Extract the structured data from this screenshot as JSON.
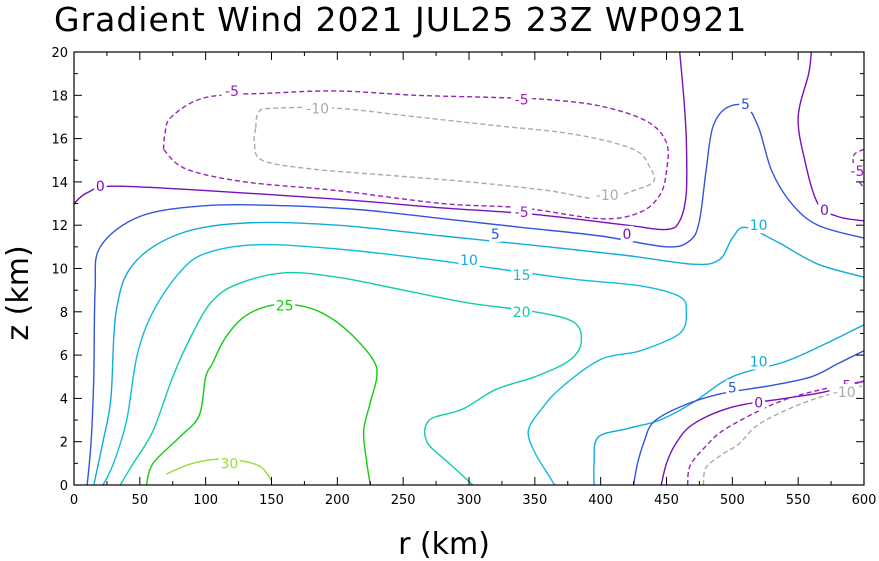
{
  "chart_data": {
    "type": "contour",
    "title": "Gradient Wind 2021 JUL25 23Z   WP0921",
    "xlabel": "r (km)",
    "ylabel": "z (km)",
    "xlim": [
      0,
      600
    ],
    "ylim": [
      0,
      20
    ],
    "xticks": [
      0,
      50,
      100,
      150,
      200,
      250,
      300,
      350,
      400,
      450,
      500,
      550,
      600
    ],
    "yticks": [
      0,
      2,
      4,
      6,
      8,
      10,
      12,
      14,
      16,
      18,
      20
    ],
    "grid": false,
    "contours": [
      {
        "level": 30,
        "color": "#99dd33",
        "dashed": false,
        "lines": [
          [
            [
              70,
              0.5
            ],
            [
              90,
              1.0
            ],
            [
              115,
              1.2
            ],
            [
              140,
              0.9
            ],
            [
              150,
              0.2
            ]
          ]
        ]
      },
      {
        "level": 25,
        "color": "#11cc11",
        "dashed": false,
        "lines": [
          [
            [
              55,
              0
            ],
            [
              60,
              1
            ],
            [
              80,
              2.2
            ],
            [
              95,
              3.2
            ],
            [
              100,
              5.0
            ],
            [
              105,
              5.6
            ],
            [
              115,
              6.8
            ],
            [
              130,
              7.8
            ],
            [
              150,
              8.3
            ],
            [
              170,
              8.3
            ],
            [
              190,
              7.9
            ],
            [
              210,
              7.0
            ],
            [
              227,
              5.8
            ],
            [
              230,
              5.0
            ],
            [
              225,
              3.8
            ],
            [
              220,
              2.5
            ],
            [
              222,
              1.2
            ],
            [
              225,
              0
            ]
          ]
        ]
      },
      {
        "level": 20,
        "color": "#11ccaa",
        "dashed": false,
        "lines": [
          [
            [
              35,
              0
            ],
            [
              45,
              1
            ],
            [
              60,
              2.5
            ],
            [
              75,
              5
            ],
            [
              90,
              7
            ],
            [
              105,
              8.5
            ],
            [
              125,
              9.3
            ],
            [
              160,
              9.8
            ],
            [
              200,
              9.6
            ],
            [
              250,
              9.0
            ],
            [
              300,
              8.4
            ],
            [
              350,
              8.0
            ],
            [
              380,
              7.5
            ],
            [
              385,
              6.5
            ],
            [
              375,
              5.7
            ],
            [
              350,
              5.0
            ],
            [
              320,
              4.4
            ],
            [
              295,
              3.5
            ],
            [
              270,
              3.0
            ],
            [
              268,
              2.0
            ],
            [
              285,
              1.0
            ],
            [
              303,
              0
            ]
          ]
        ]
      },
      {
        "level": 15,
        "color": "#11bbdd",
        "dashed": false,
        "lines": [
          [
            [
              22,
              0
            ],
            [
              30,
              1
            ],
            [
              40,
              3
            ],
            [
              48,
              6
            ],
            [
              60,
              8
            ],
            [
              80,
              9.8
            ],
            [
              100,
              10.7
            ],
            [
              140,
              11.1
            ],
            [
              200,
              10.9
            ],
            [
              260,
              10.5
            ],
            [
              320,
              10.0
            ],
            [
              380,
              9.5
            ],
            [
              430,
              9.2
            ],
            [
              460,
              8.7
            ],
            [
              465,
              8.0
            ],
            [
              460,
              7.0
            ],
            [
              430,
              6.2
            ],
            [
              400,
              5.8
            ],
            [
              370,
              4.5
            ],
            [
              355,
              3.5
            ],
            [
              345,
              2.5
            ],
            [
              350,
              1.5
            ],
            [
              360,
              0.5
            ],
            [
              365,
              0
            ]
          ]
        ]
      },
      {
        "level": 10,
        "color": "#11aadd",
        "dashed": false,
        "lines": [
          [
            [
              15,
              0
            ],
            [
              22,
              2
            ],
            [
              28,
              4
            ],
            [
              32,
              8
            ],
            [
              45,
              10.2
            ],
            [
              80,
              11.6
            ],
            [
              130,
              12.1
            ],
            [
              200,
              12.0
            ],
            [
              280,
              11.5
            ],
            [
              360,
              11.0
            ],
            [
              420,
              10.6
            ],
            [
              470,
              10.2
            ],
            [
              490,
              10.4
            ],
            [
              500,
              11.4
            ],
            [
              510,
              11.9
            ],
            [
              535,
              11.2
            ],
            [
              565,
              10.2
            ],
            [
              600,
              9.6
            ]
          ],
          [
            [
              395,
              0
            ],
            [
              395,
              1
            ],
            [
              398,
              2.2
            ],
            [
              420,
              2.6
            ],
            [
              445,
              3.0
            ],
            [
              470,
              3.8
            ],
            [
              500,
              5.0
            ],
            [
              540,
              5.7
            ],
            [
              570,
              6.5
            ],
            [
              600,
              7.4
            ]
          ]
        ]
      },
      {
        "level": 5,
        "color": "#3355dd",
        "dashed": false,
        "lines": [
          [
            [
              10,
              0
            ],
            [
              13,
              2
            ],
            [
              15,
              5
            ],
            [
              16,
              9
            ],
            [
              20,
              11.0
            ],
            [
              50,
              12.4
            ],
            [
              100,
              12.9
            ],
            [
              160,
              12.9
            ],
            [
              220,
              12.7
            ],
            [
              280,
              12.3
            ],
            [
              340,
              11.9
            ],
            [
              400,
              11.5
            ],
            [
              450,
              11.0
            ],
            [
              468,
              11.3
            ],
            [
              475,
              12.2
            ],
            [
              480,
              14.5
            ],
            [
              485,
              16.5
            ],
            [
              495,
              17.4
            ],
            [
              510,
              17.5
            ],
            [
              520,
              16.5
            ],
            [
              530,
              14.5
            ],
            [
              545,
              13.0
            ],
            [
              565,
              12.0
            ],
            [
              600,
              11.4
            ]
          ],
          [
            [
              425,
              0
            ],
            [
              428,
              1.0
            ],
            [
              433,
              2.0
            ],
            [
              440,
              2.9
            ],
            [
              460,
              3.6
            ],
            [
              490,
              4.2
            ],
            [
              530,
              4.6
            ],
            [
              560,
              5.0
            ],
            [
              580,
              5.6
            ],
            [
              600,
              6.2
            ]
          ]
        ]
      },
      {
        "level": 0,
        "color": "#7711bb",
        "dashed": false,
        "lines": [
          [
            [
              0,
              13.0
            ],
            [
              10,
              13.5
            ],
            [
              30,
              13.8
            ],
            [
              100,
              13.6
            ],
            [
              200,
              13.2
            ],
            [
              280,
              12.8
            ],
            [
              350,
              12.5
            ],
            [
              420,
              12.0
            ],
            [
              450,
              11.8
            ],
            [
              460,
              12.2
            ],
            [
              465,
              13.5
            ],
            [
              465,
              16.0
            ],
            [
              463,
              18.0
            ],
            [
              460,
              20.0
            ]
          ],
          [
            [
              560,
              20.0
            ],
            [
              558,
              19.0
            ],
            [
              550,
              17.0
            ],
            [
              555,
              15.0
            ],
            [
              565,
              13.0
            ],
            [
              580,
              12.4
            ],
            [
              600,
              12.2
            ]
          ],
          [
            [
              446,
              0
            ],
            [
              450,
              1.0
            ],
            [
              457,
              1.9
            ],
            [
              470,
              2.8
            ],
            [
              500,
              3.6
            ],
            [
              540,
              4.0
            ],
            [
              570,
              4.3
            ],
            [
              600,
              4.8
            ]
          ]
        ]
      },
      {
        "level": -5,
        "color": "#9922bb",
        "dashed": true,
        "lines": [
          [
            [
              68,
              15.5
            ],
            [
              69,
              16.2
            ],
            [
              74,
              17.0
            ],
            [
              100,
              17.9
            ],
            [
              150,
              18.1
            ],
            [
              200,
              18.2
            ],
            [
              260,
              18.0
            ],
            [
              320,
              17.9
            ],
            [
              360,
              17.8
            ],
            [
              400,
              17.5
            ],
            [
              435,
              16.8
            ],
            [
              450,
              15.8
            ],
            [
              450,
              14.5
            ],
            [
              445,
              13.4
            ],
            [
              430,
              12.6
            ],
            [
              400,
              12.3
            ],
            [
              340,
              12.8
            ],
            [
              280,
              13.0
            ],
            [
              200,
              13.6
            ],
            [
              130,
              14.0
            ],
            [
              85,
              14.6
            ],
            [
              68,
              15.5
            ]
          ],
          [
            [
              600,
              15.5
            ],
            [
              592,
              15.2
            ],
            [
              594,
              14.3
            ],
            [
              600,
              13.7
            ]
          ],
          [
            [
              466,
              0
            ],
            [
              468,
              0.9
            ],
            [
              480,
              1.8
            ],
            [
              495,
              2.6
            ],
            [
              530,
              3.7
            ],
            [
              560,
              4.3
            ],
            [
              600,
              4.8
            ]
          ]
        ]
      },
      {
        "level": -10,
        "color": "#aaaaaa",
        "dashed": true,
        "lines": [
          [
            [
              138,
              16.5
            ],
            [
              140,
              17.2
            ],
            [
              150,
              17.4
            ],
            [
              200,
              17.4
            ],
            [
              260,
              17.0
            ],
            [
              320,
              16.6
            ],
            [
              380,
              16.2
            ],
            [
              425,
              15.5
            ],
            [
              438,
              14.6
            ],
            [
              440,
              14.0
            ],
            [
              425,
              13.6
            ],
            [
              400,
              13.2
            ],
            [
              360,
              13.6
            ],
            [
              300,
              14.0
            ],
            [
              240,
              14.3
            ],
            [
              180,
              14.6
            ],
            [
              143,
              15.0
            ],
            [
              137,
              15.8
            ],
            [
              138,
              16.5
            ]
          ],
          [
            [
              478,
              0
            ],
            [
              480,
              0.8
            ],
            [
              492,
              1.4
            ],
            [
              505,
              1.9
            ],
            [
              520,
              2.8
            ],
            [
              550,
              3.7
            ],
            [
              580,
              4.3
            ],
            [
              600,
              4.6
            ]
          ]
        ]
      }
    ],
    "labels": [
      {
        "text": "30",
        "x": 118,
        "y": 1.0,
        "color": "#99dd33"
      },
      {
        "text": "25",
        "x": 160,
        "y": 8.3,
        "color": "#11cc11"
      },
      {
        "text": "20",
        "x": 340,
        "y": 8.0,
        "color": "#11ccaa"
      },
      {
        "text": "15",
        "x": 340,
        "y": 9.7,
        "color": "#11bbdd"
      },
      {
        "text": "10",
        "x": 300,
        "y": 10.4,
        "color": "#11aadd"
      },
      {
        "text": "10",
        "x": 520,
        "y": 12.0,
        "color": "#11aadd"
      },
      {
        "text": "10",
        "x": 520,
        "y": 5.7,
        "color": "#11aadd"
      },
      {
        "text": "5",
        "x": 320,
        "y": 11.6,
        "color": "#3355dd"
      },
      {
        "text": "5",
        "x": 510,
        "y": 17.6,
        "color": "#3355dd"
      },
      {
        "text": "5",
        "x": 500,
        "y": 4.5,
        "color": "#3355dd"
      },
      {
        "text": "0",
        "x": 20,
        "y": 13.8,
        "color": "#7711bb"
      },
      {
        "text": "0",
        "x": 420,
        "y": 11.6,
        "color": "#7711bb"
      },
      {
        "text": "0",
        "x": 570,
        "y": 12.7,
        "color": "#7711bb"
      },
      {
        "text": "0",
        "x": 520,
        "y": 3.8,
        "color": "#7711bb"
      },
      {
        "text": "-5",
        "x": 120,
        "y": 18.2,
        "color": "#9922bb"
      },
      {
        "text": "-5",
        "x": 340,
        "y": 17.8,
        "color": "#9922bb"
      },
      {
        "text": "-5",
        "x": 340,
        "y": 12.6,
        "color": "#9922bb"
      },
      {
        "text": "-5",
        "x": 595,
        "y": 14.5,
        "color": "#9922bb"
      },
      {
        "text": "-5",
        "x": 585,
        "y": 4.6,
        "color": "#9922bb"
      },
      {
        "text": "-10",
        "x": 185,
        "y": 17.4,
        "color": "#aaaaaa"
      },
      {
        "text": "-10",
        "x": 405,
        "y": 13.4,
        "color": "#aaaaaa"
      },
      {
        "text": "-10",
        "x": 585,
        "y": 4.3,
        "color": "#aaaaaa"
      }
    ]
  }
}
